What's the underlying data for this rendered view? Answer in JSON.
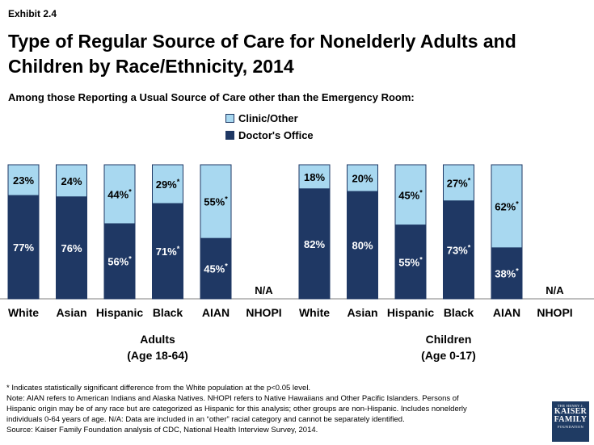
{
  "exhibit": "Exhibit 2.4",
  "title_line1": "Type of Regular Source of Care for Nonelderly Adults and",
  "title_line2": "Children by Race/Ethnicity, 2014",
  "subtitle": "Among those Reporting a Usual Source of Care other than the Emergency Room:",
  "colors": {
    "clinic": "#a8d8f0",
    "doctor": "#1f3864",
    "bar_border": "#1f3864"
  },
  "legend": {
    "clinic": "Clinic/Other",
    "doctor": "Doctor's Office"
  },
  "groups": [
    {
      "line1": "Adults",
      "line2": "(Age 18-64)"
    },
    {
      "line1": "Children",
      "line2": "(Age 0-17)"
    }
  ],
  "chart_data": {
    "type": "bar",
    "stacked": true,
    "ylim": [
      0,
      100
    ],
    "series_names": [
      "Doctor's Office",
      "Clinic/Other"
    ],
    "groups": [
      {
        "name": "Adults (Age 18-64)",
        "bars": [
          {
            "category": "White",
            "doctor": 77,
            "clinic": 23,
            "doctor_label": "77%",
            "clinic_label": "23%"
          },
          {
            "category": "Asian",
            "doctor": 76,
            "clinic": 24,
            "doctor_label": "76%",
            "clinic_label": "24%"
          },
          {
            "category": "Hispanic",
            "doctor": 56,
            "clinic": 44,
            "doctor_label": "56%*",
            "clinic_label": "44%*"
          },
          {
            "category": "Black",
            "doctor": 71,
            "clinic": 29,
            "doctor_label": "71%*",
            "clinic_label": "29%*"
          },
          {
            "category": "AIAN",
            "doctor": 45,
            "clinic": 55,
            "doctor_label": "45%*",
            "clinic_label": "55%*"
          },
          {
            "category": "NHOPI",
            "doctor": null,
            "clinic": null,
            "na_label": "N/A"
          }
        ]
      },
      {
        "name": "Children (Age 0-17)",
        "bars": [
          {
            "category": "White",
            "doctor": 82,
            "clinic": 18,
            "doctor_label": "82%",
            "clinic_label": "18%"
          },
          {
            "category": "Asian",
            "doctor": 80,
            "clinic": 20,
            "doctor_label": "80%",
            "clinic_label": "20%"
          },
          {
            "category": "Hispanic",
            "doctor": 55,
            "clinic": 45,
            "doctor_label": "55%*",
            "clinic_label": "45%*"
          },
          {
            "category": "Black",
            "doctor": 73,
            "clinic": 27,
            "doctor_label": "73%*",
            "clinic_label": "27%*"
          },
          {
            "category": "AIAN",
            "doctor": 38,
            "clinic": 62,
            "doctor_label": "38%*",
            "clinic_label": "62%*"
          },
          {
            "category": "NHOPI",
            "doctor": null,
            "clinic": null,
            "na_label": "N/A"
          }
        ]
      }
    ]
  },
  "footnotes": [
    "* Indicates statistically significant difference from the White population at the p<0.05 level.",
    "Note: AIAN refers to American Indians and Alaska Natives. NHOPI refers to Native Hawaiians and Other Pacific Islanders. Persons of",
    "Hispanic origin may be of any race but are categorized as Hispanic for this analysis; other groups are non-Hispanic. Includes nonelderly",
    "individuals 0-64 years of age. N/A: Data are included in an “other” racial category and cannot be separately identified.",
    "Source: Kaiser Family Foundation analysis of CDC, National Health Interview Survey, 2014."
  ],
  "logo": {
    "line1": "THE HENRY J.",
    "line2": "KAISER",
    "line3": "FAMILY",
    "line4": "FOUNDATION"
  }
}
